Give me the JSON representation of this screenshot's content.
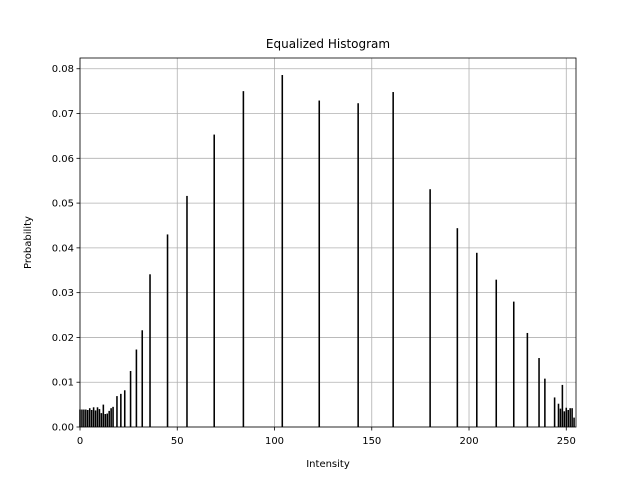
{
  "chart_data": {
    "type": "bar",
    "title": "Equalized Histogram",
    "xlabel": "Intensity",
    "ylabel": "Probability",
    "xlim": [
      0,
      255
    ],
    "ylim": [
      0,
      0.0824
    ],
    "grid": true,
    "x_ticks": [
      0,
      50,
      100,
      150,
      200,
      250
    ],
    "x_tick_labels": [
      "0",
      "50",
      "100",
      "150",
      "200",
      "250"
    ],
    "y_ticks": [
      0,
      0.01,
      0.02,
      0.03,
      0.04,
      0.05,
      0.06,
      0.07,
      0.08
    ],
    "y_tick_labels": [
      "0.00",
      "0.01",
      "0.02",
      "0.03",
      "0.04",
      "0.05",
      "0.06",
      "0.07",
      "0.08"
    ],
    "bar_width": 0.8,
    "color": "#000000",
    "x": [
      0,
      1,
      2,
      3,
      4,
      5,
      6,
      7,
      8,
      9,
      10,
      11,
      12,
      13,
      14,
      15,
      16,
      17,
      19,
      21,
      23,
      26,
      29,
      32,
      36,
      45,
      55,
      69,
      84,
      104,
      123,
      143,
      161,
      180,
      194,
      204,
      214,
      223,
      230,
      236,
      239,
      244,
      246,
      247,
      248,
      249,
      250,
      251,
      252,
      253,
      254
    ],
    "values": [
      0.0039,
      0.0039,
      0.0039,
      0.0039,
      0.0038,
      0.0042,
      0.0038,
      0.0044,
      0.0037,
      0.0044,
      0.004,
      0.0031,
      0.005,
      0.0029,
      0.003,
      0.0036,
      0.0042,
      0.0045,
      0.0069,
      0.0074,
      0.0082,
      0.0125,
      0.0173,
      0.0216,
      0.0341,
      0.043,
      0.0516,
      0.0653,
      0.075,
      0.0786,
      0.0729,
      0.0723,
      0.0748,
      0.0531,
      0.0444,
      0.0389,
      0.0329,
      0.028,
      0.021,
      0.0154,
      0.0108,
      0.0066,
      0.0052,
      0.0041,
      0.0094,
      0.0035,
      0.0043,
      0.0038,
      0.0042,
      0.0042,
      0.0021
    ]
  }
}
